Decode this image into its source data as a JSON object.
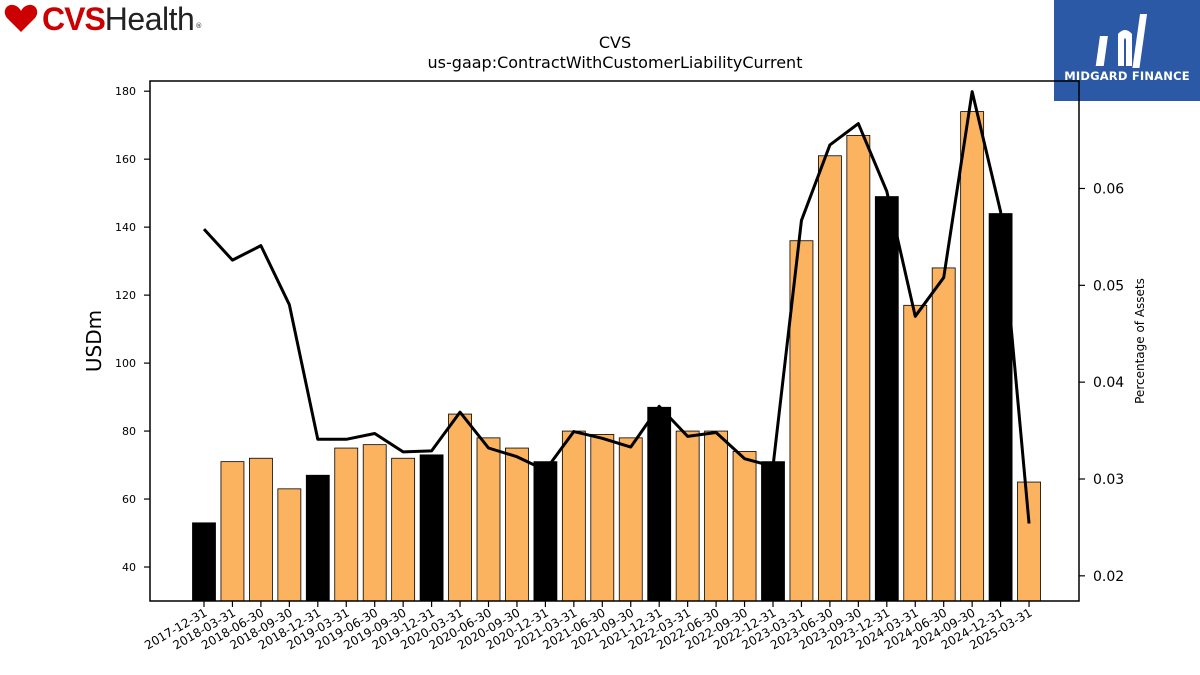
{
  "brand": {
    "cvs": "CVS",
    "health": "Health",
    "registered": "®",
    "heart_color": "#cc0000",
    "watermark_text": "MIDGARD FINANCE",
    "watermark_bg": "#2b59a6"
  },
  "chart_data": {
    "type": "bar",
    "title": "CVS",
    "subtitle": "us-gaap:ContractWithCustomerLiabilityCurrent",
    "ylabel": "USDm",
    "y2label": "Percentage of Assets",
    "ylim": [
      30,
      183
    ],
    "y2lim": [
      0.0174,
      0.0711
    ],
    "yticks": [
      40,
      60,
      80,
      100,
      120,
      140,
      160,
      180
    ],
    "y2ticks": [
      0.02,
      0.03,
      0.04,
      0.05,
      0.06
    ],
    "y2tick_labels": [
      "0.02",
      "0.03",
      "0.04",
      "0.05",
      "0.06"
    ],
    "grid": false,
    "categories": [
      "2017-12-31",
      "2018-03-31",
      "2018-06-30",
      "2018-09-30",
      "2018-12-31",
      "2019-03-31",
      "2019-06-30",
      "2019-09-30",
      "2019-12-31",
      "2020-03-31",
      "2020-06-30",
      "2020-09-30",
      "2020-12-31",
      "2021-03-31",
      "2021-06-30",
      "2021-09-30",
      "2021-12-31",
      "2022-03-31",
      "2022-06-30",
      "2022-09-30",
      "2022-12-31",
      "2023-03-31",
      "2023-06-30",
      "2023-09-30",
      "2023-12-31",
      "2024-03-31",
      "2024-06-30",
      "2024-09-30",
      "2024-12-31",
      "2025-03-31"
    ],
    "series": [
      {
        "type": "bar",
        "axis": "left",
        "values": [
          53,
          71,
          72,
          63,
          67,
          75,
          76,
          72,
          73,
          85,
          78,
          75,
          71,
          80,
          79,
          78,
          87,
          80,
          80,
          74,
          71,
          136,
          161,
          167,
          149,
          117,
          128,
          174,
          144,
          65
        ],
        "annual": [
          true,
          false,
          false,
          false,
          true,
          false,
          false,
          false,
          true,
          false,
          false,
          false,
          true,
          false,
          false,
          false,
          true,
          false,
          false,
          false,
          true,
          false,
          false,
          false,
          true,
          false,
          false,
          false,
          true,
          false
        ],
        "color_annual": "#000000",
        "color_quarter": "#fbb360"
      },
      {
        "type": "line",
        "axis": "right",
        "values": [
          0.0558,
          0.0526,
          0.0541,
          0.048,
          0.0341,
          0.0341,
          0.0347,
          0.0328,
          0.0329,
          0.0369,
          0.0332,
          0.0323,
          0.0309,
          0.0349,
          0.0342,
          0.0333,
          0.0375,
          0.0344,
          0.0348,
          0.0321,
          0.0313,
          0.0567,
          0.0645,
          0.0667,
          0.0597,
          0.0468,
          0.0508,
          0.07,
          0.0576,
          0.0254
        ],
        "color": "#000000"
      }
    ]
  }
}
